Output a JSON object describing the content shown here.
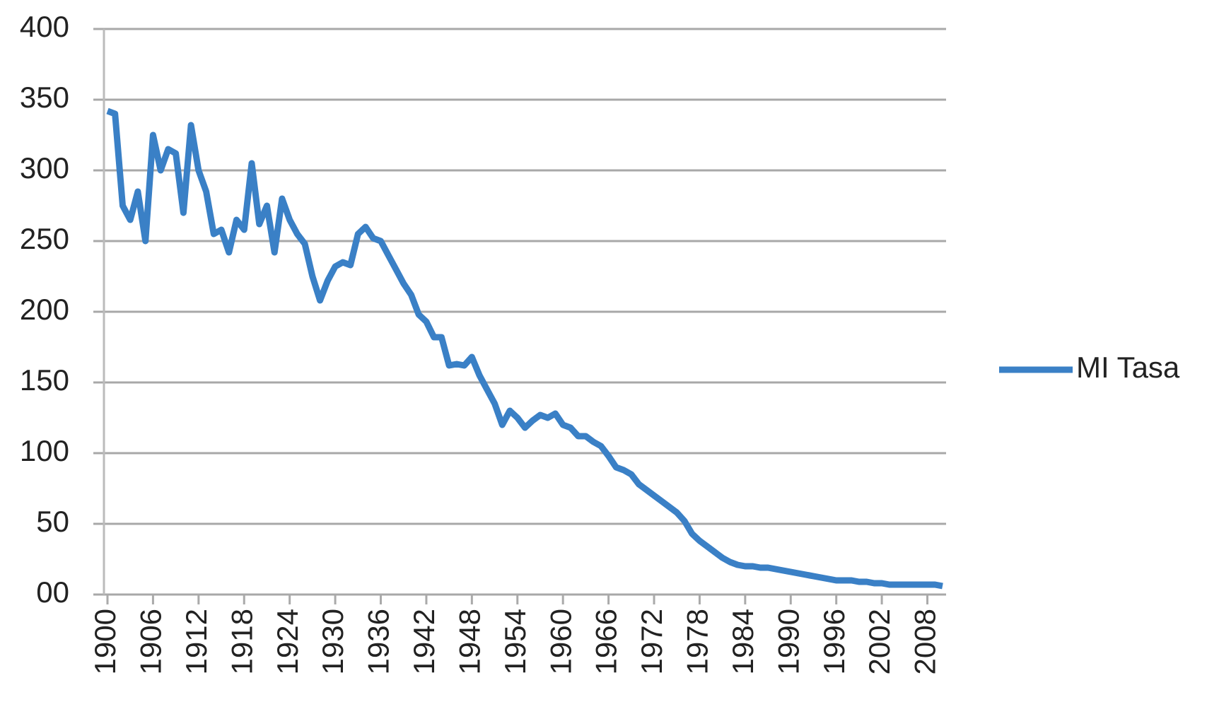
{
  "chart_data": {
    "type": "line",
    "x": [
      1900,
      1901,
      1902,
      1903,
      1904,
      1905,
      1906,
      1907,
      1908,
      1909,
      1910,
      1911,
      1912,
      1913,
      1914,
      1915,
      1916,
      1917,
      1918,
      1919,
      1920,
      1921,
      1922,
      1923,
      1924,
      1925,
      1926,
      1927,
      1928,
      1929,
      1930,
      1931,
      1932,
      1933,
      1934,
      1935,
      1936,
      1937,
      1938,
      1939,
      1940,
      1941,
      1942,
      1943,
      1944,
      1945,
      1946,
      1947,
      1948,
      1949,
      1950,
      1951,
      1952,
      1953,
      1954,
      1955,
      1956,
      1957,
      1958,
      1959,
      1960,
      1961,
      1962,
      1963,
      1964,
      1965,
      1966,
      1967,
      1968,
      1969,
      1970,
      1971,
      1972,
      1973,
      1974,
      1975,
      1976,
      1977,
      1978,
      1979,
      1980,
      1981,
      1982,
      1983,
      1984,
      1985,
      1986,
      1987,
      1988,
      1989,
      1990,
      1991,
      1992,
      1993,
      1994,
      1995,
      1996,
      1997,
      1998,
      1999,
      2000,
      2001,
      2002,
      2003,
      2004,
      2005,
      2006,
      2007,
      2008,
      2009,
      2010
    ],
    "series": [
      {
        "name": "MI Tasa",
        "color": "#3a80c6",
        "values": [
          342,
          340,
          275,
          265,
          285,
          250,
          325,
          300,
          315,
          312,
          270,
          332,
          300,
          285,
          255,
          258,
          242,
          265,
          258,
          305,
          262,
          275,
          242,
          280,
          265,
          255,
          248,
          225,
          208,
          222,
          232,
          235,
          233,
          255,
          260,
          252,
          250,
          240,
          230,
          220,
          212,
          198,
          193,
          182,
          182,
          162,
          163,
          162,
          168,
          155,
          145,
          135,
          120,
          130,
          125,
          118,
          123,
          127,
          125,
          128,
          120,
          118,
          112,
          112,
          108,
          105,
          98,
          90,
          88,
          85,
          78,
          74,
          70,
          66,
          62,
          58,
          52,
          43,
          38,
          34,
          30,
          26,
          23,
          21,
          20,
          20,
          19,
          19,
          18,
          17,
          16,
          15,
          14,
          13,
          12,
          11,
          10,
          10,
          10,
          9,
          9,
          8,
          8,
          7,
          7,
          7,
          7,
          7,
          7,
          7,
          6
        ]
      }
    ],
    "xlim": [
      1900,
      2010
    ],
    "xticks": [
      1900,
      1906,
      1912,
      1918,
      1924,
      1930,
      1936,
      1942,
      1948,
      1954,
      1960,
      1966,
      1972,
      1978,
      1984,
      1990,
      1996,
      2002,
      2008
    ],
    "ylim": [
      0,
      400
    ],
    "yticks": [
      {
        "value": 0,
        "label": "00"
      },
      50,
      100,
      150,
      200,
      250,
      300,
      350,
      400
    ],
    "grid": true,
    "legend": "right"
  }
}
